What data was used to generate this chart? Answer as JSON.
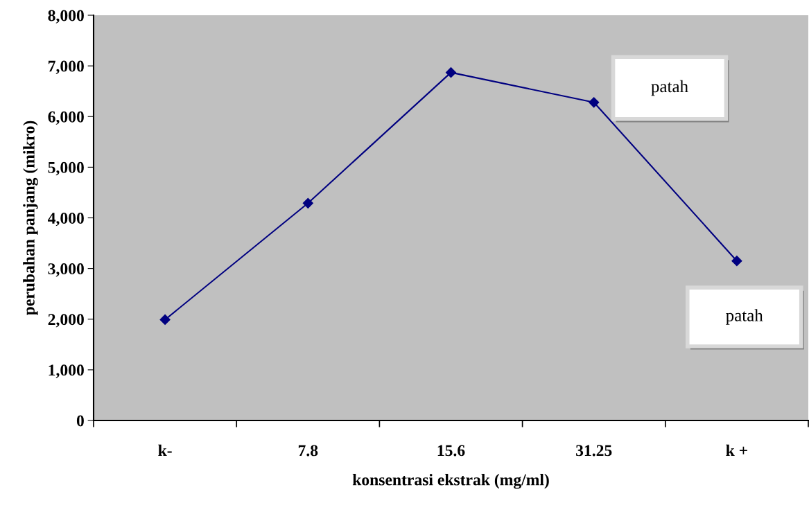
{
  "chart_data": {
    "type": "line",
    "xlabel": "konsentrasi ekstrak (mg/ml)",
    "ylabel": "perubahan panjang (mikro)",
    "categories": [
      "k-",
      "7.8",
      "15.6",
      "31.25",
      "k +"
    ],
    "series": [
      {
        "color": "#000080",
        "values": [
          1990,
          4290,
          6870,
          6280,
          3150
        ]
      }
    ],
    "ylim": [
      0,
      8000
    ],
    "yticks": [
      {
        "value": 0,
        "label": "0"
      },
      {
        "value": 1000,
        "label": "1,000"
      },
      {
        "value": 2000,
        "label": "2,000"
      },
      {
        "value": 3000,
        "label": "3,000"
      },
      {
        "value": 4000,
        "label": "4,000"
      },
      {
        "value": 5000,
        "label": "5,000"
      },
      {
        "value": 6000,
        "label": "6,000"
      },
      {
        "value": 7000,
        "label": "7,000"
      },
      {
        "value": 8000,
        "label": "8,000"
      }
    ],
    "marker": "diamond",
    "grid": false,
    "legend": false,
    "annotations": [
      "patah",
      "patah"
    ]
  }
}
